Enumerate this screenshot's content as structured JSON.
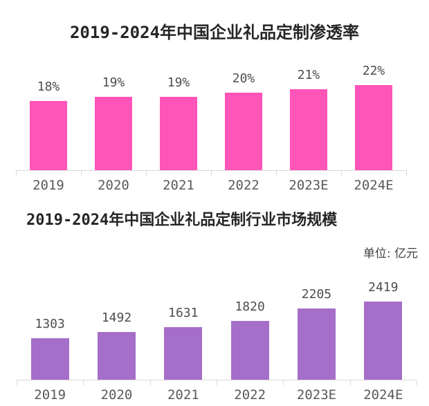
{
  "page": {
    "background": "#ffffff"
  },
  "chart_data": [
    {
      "type": "bar",
      "title": "2019-2024年中国企业礼品定制渗透率",
      "categories": [
        "2019",
        "2020",
        "2021",
        "2022",
        "2023E",
        "2024E"
      ],
      "values": [
        18,
        19,
        19,
        20,
        21,
        22
      ],
      "value_labels": [
        "18%",
        "19%",
        "19%",
        "20%",
        "21%",
        "22%"
      ],
      "unit": "%",
      "bar_color": "#FF54B8",
      "ylim": [
        0,
        22
      ],
      "grid": false,
      "legend": false,
      "title_align": "center"
    },
    {
      "type": "bar",
      "title": "2019-2024年中国企业礼品定制行业市场规模",
      "unit_label": "单位: 亿元",
      "categories": [
        "2019",
        "2020",
        "2021",
        "2022",
        "2023E",
        "2024E"
      ],
      "values": [
        1303,
        1492,
        1631,
        1820,
        2205,
        2419
      ],
      "value_labels": [
        "1303",
        "1492",
        "1631",
        "1820",
        "2205",
        "2419"
      ],
      "unit": "亿元",
      "bar_color": "#A56EC8",
      "ylim": [
        0,
        2419
      ],
      "grid": false,
      "legend": false,
      "title_align": "left"
    }
  ]
}
